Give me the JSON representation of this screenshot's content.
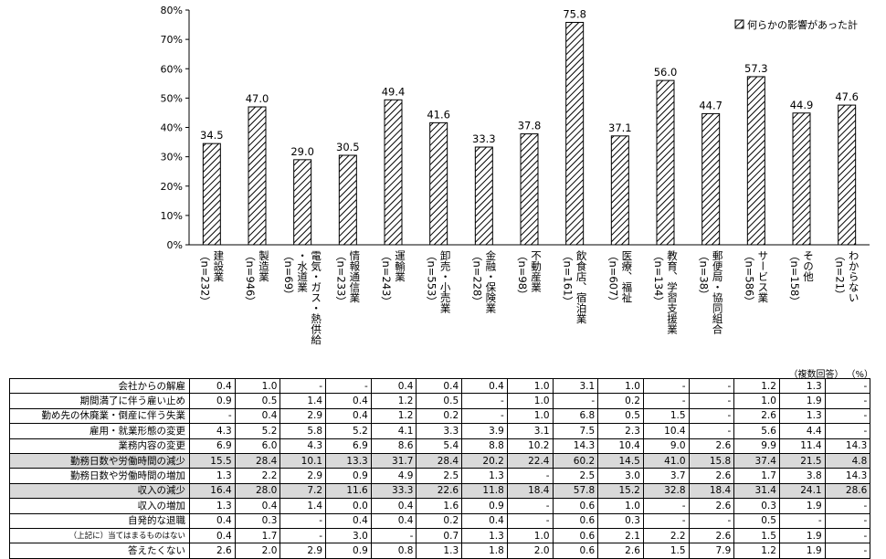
{
  "chart_data": {
    "type": "bar",
    "ylim": [
      0,
      80
    ],
    "yticks": [
      "0%",
      "10%",
      "20%",
      "30%",
      "40%",
      "50%",
      "60%",
      "70%",
      "80%"
    ],
    "legend": "何らかの影響があった計",
    "legend_position": "top-right",
    "categories": [
      [
        "建設業",
        "（n=232）"
      ],
      [
        "製造業",
        "（n=946）"
      ],
      [
        "電気・ガス・熱供給",
        "・水道業",
        "（n=69）"
      ],
      [
        "情報通信業",
        "（n=233）"
      ],
      [
        "運輸業",
        "（n=243）"
      ],
      [
        "卸売・小売業",
        "（n=553）"
      ],
      [
        "金融・保険業",
        "（n=228）"
      ],
      [
        "不動産業",
        "（n=98）"
      ],
      [
        "飲食店、宿泊業",
        "（n=161）"
      ],
      [
        "医療、福祉",
        "（n=607）"
      ],
      [
        "教育、学習支援業",
        "（n=134）"
      ],
      [
        "郵便局・協同組合",
        "（n=38）"
      ],
      [
        "サービス業",
        "（n=586）"
      ],
      [
        "その他",
        "（n=158）"
      ],
      [
        "わからない",
        "（n=21）"
      ]
    ],
    "values": [
      34.5,
      47.0,
      29.0,
      30.5,
      49.4,
      41.6,
      33.3,
      37.8,
      75.8,
      37.1,
      56.0,
      44.7,
      57.3,
      44.9,
      47.6
    ],
    "labels": [
      "34.5",
      "47.0",
      "29.0",
      "30.5",
      "49.4",
      "41.6",
      "33.3",
      "37.8",
      "75.8",
      "37.1",
      "56.0",
      "44.7",
      "57.3",
      "44.9",
      "47.6"
    ]
  },
  "table": {
    "note_multi": "（複数回答）",
    "note_unit": "（%）",
    "rows": [
      {
        "label": "会社からの解雇",
        "values": [
          "0.4",
          "1.0",
          "-",
          "-",
          "0.4",
          "0.4",
          "0.4",
          "1.0",
          "3.1",
          "1.0",
          "-",
          "-",
          "1.2",
          "1.3",
          "-"
        ]
      },
      {
        "label": "期間満了に伴う雇い止め",
        "values": [
          "0.9",
          "0.5",
          "1.4",
          "0.4",
          "1.2",
          "0.5",
          "-",
          "1.0",
          "-",
          "0.2",
          "-",
          "-",
          "1.0",
          "1.9",
          "-"
        ]
      },
      {
        "label": "勤め先の休廃業・倒産に伴う失業",
        "values": [
          "-",
          "0.4",
          "2.9",
          "0.4",
          "1.2",
          "0.2",
          "-",
          "1.0",
          "6.8",
          "0.5",
          "1.5",
          "-",
          "2.6",
          "1.3",
          "-"
        ]
      },
      {
        "label": "雇用・就業形態の変更",
        "values": [
          "4.3",
          "5.2",
          "5.8",
          "5.2",
          "4.1",
          "3.3",
          "3.9",
          "3.1",
          "7.5",
          "2.3",
          "10.4",
          "-",
          "5.6",
          "4.4",
          "-"
        ]
      },
      {
        "label": "業務内容の変更",
        "values": [
          "6.9",
          "6.0",
          "4.3",
          "6.9",
          "8.6",
          "5.4",
          "8.8",
          "10.2",
          "14.3",
          "10.4",
          "9.0",
          "2.6",
          "9.9",
          "11.4",
          "14.3"
        ]
      },
      {
        "label": "勤務日数や労働時間の減少",
        "values": [
          "15.5",
          "28.4",
          "10.1",
          "13.3",
          "31.7",
          "28.4",
          "20.2",
          "22.4",
          "60.2",
          "14.5",
          "41.0",
          "15.8",
          "37.4",
          "21.5",
          "4.8"
        ],
        "highlight": true
      },
      {
        "label": "勤務日数や労働時間の増加",
        "values": [
          "1.3",
          "2.2",
          "2.9",
          "0.9",
          "4.9",
          "2.5",
          "1.3",
          "-",
          "2.5",
          "3.0",
          "3.7",
          "2.6",
          "1.7",
          "3.8",
          "14.3"
        ]
      },
      {
        "label": "収入の減少",
        "values": [
          "16.4",
          "28.0",
          "7.2",
          "11.6",
          "33.3",
          "22.6",
          "11.8",
          "18.4",
          "57.8",
          "15.2",
          "32.8",
          "18.4",
          "31.4",
          "24.1",
          "28.6"
        ],
        "highlight": true
      },
      {
        "label": "収入の増加",
        "values": [
          "1.3",
          "0.4",
          "1.4",
          "0.0",
          "0.4",
          "1.6",
          "0.9",
          "-",
          "0.6",
          "1.0",
          "-",
          "2.6",
          "0.3",
          "1.9",
          "-"
        ]
      },
      {
        "label": "自発的な退職",
        "values": [
          "0.4",
          "0.3",
          "-",
          "0.4",
          "0.4",
          "0.2",
          "0.4",
          "-",
          "0.6",
          "0.3",
          "-",
          "-",
          "0.5",
          "-",
          "-"
        ]
      },
      {
        "label": "（上記に）当てはまるものはない",
        "values": [
          "0.4",
          "1.7",
          "-",
          "3.0",
          "-",
          "0.7",
          "1.3",
          "1.0",
          "0.6",
          "2.1",
          "2.2",
          "2.6",
          "1.5",
          "1.9",
          "-"
        ],
        "small": true
      },
      {
        "label": "答えたくない",
        "values": [
          "2.6",
          "2.0",
          "2.9",
          "0.9",
          "0.8",
          "1.3",
          "1.8",
          "2.0",
          "0.6",
          "2.6",
          "1.5",
          "7.9",
          "1.2",
          "1.9",
          "-"
        ]
      }
    ]
  }
}
